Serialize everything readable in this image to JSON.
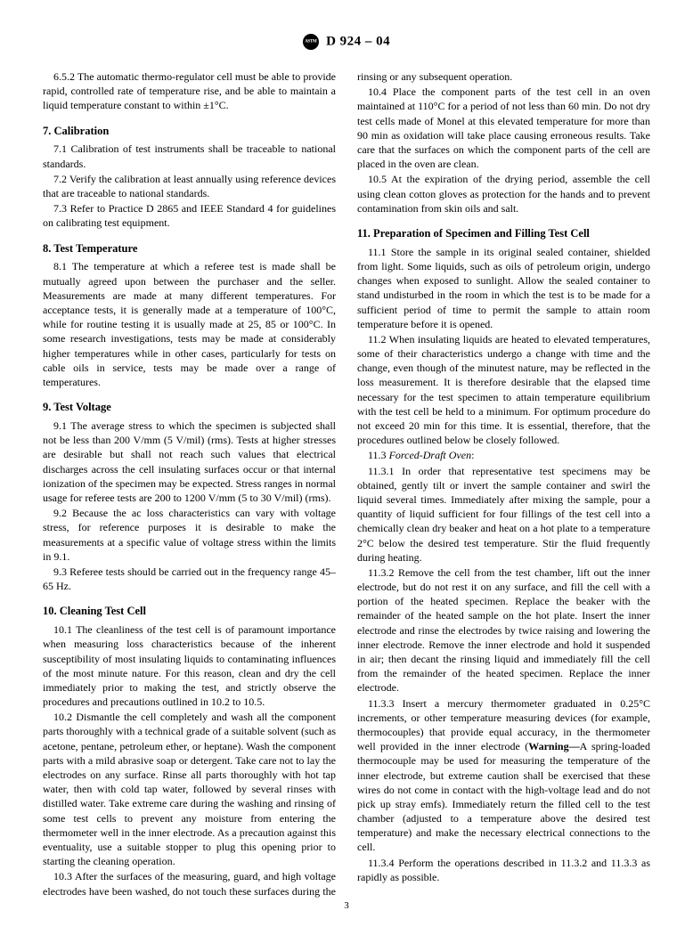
{
  "header": {
    "designation": "D 924 – 04"
  },
  "paragraphs": {
    "p652": "6.5.2 The automatic thermo-regulator cell must be able to provide rapid, controlled rate of temperature rise, and be able to maintain a liquid temperature constant to within ±1°C.",
    "s7": "7. Calibration",
    "p71": "7.1 Calibration of test instruments shall be traceable to national standards.",
    "p72": "7.2 Verify the calibration at least annually using reference devices that are traceable to national standards.",
    "p73": "7.3 Refer to Practice D 2865 and IEEE Standard 4 for guidelines on calibrating test equipment.",
    "s8": "8. Test Temperature",
    "p81": "8.1 The temperature at which a referee test is made shall be mutually agreed upon between the purchaser and the seller. Measurements are made at many different temperatures. For acceptance tests, it is generally made at a temperature of 100°C, while for routine testing it is usually made at 25, 85 or 100°C. In some research investigations, tests may be made at considerably higher temperatures while in other cases, particularly for tests on cable oils in service, tests may be made over a range of temperatures.",
    "s9": "9. Test Voltage",
    "p91": "9.1 The average stress to which the specimen is subjected shall not be less than 200 V/mm (5 V/mil) (rms). Tests at higher stresses are desirable but shall not reach such values that electrical discharges across the cell insulating surfaces occur or that internal ionization of the specimen may be expected. Stress ranges in normal usage for referee tests are 200 to 1200 V/mm (5 to 30 V/mil) (rms).",
    "p92": "9.2 Because the ac loss characteristics can vary with voltage stress, for reference purposes it is desirable to make the measurements at a specific value of voltage stress within the limits in 9.1.",
    "p93": "9.3 Referee tests should be carried out in the frequency range 45–65 Hz.",
    "s10": "10. Cleaning Test Cell",
    "p101": "10.1 The cleanliness of the test cell is of paramount importance when measuring loss characteristics because of the inherent susceptibility of most insulating liquids to contaminating influences of the most minute nature. For this reason, clean and dry the cell immediately prior to making the test, and strictly observe the procedures and precautions outlined in 10.2 to 10.5.",
    "p102": "10.2 Dismantle the cell completely and wash all the component parts thoroughly with a technical grade of a suitable solvent (such as acetone, pentane, petroleum ether, or heptane). Wash the component parts with a mild abrasive soap or detergent. Take care not to lay the electrodes on any surface. Rinse all parts thoroughly with hot tap water, then with cold tap water, followed by several rinses with distilled water. Take extreme care during the washing and rinsing of some test cells to prevent any moisture from entering the thermometer well in the inner electrode. As a precaution against this eventuality, use a suitable stopper to plug this opening prior to starting the cleaning operation.",
    "p103": "10.3 After the surfaces of the measuring, guard, and high voltage electrodes have been washed, do not touch these surfaces during the rinsing or any subsequent operation.",
    "p104": "10.4 Place the component parts of the test cell in an oven maintained at 110°C for a period of not less than 60 min. Do not dry test cells made of Monel at this elevated temperature for more than 90 min as oxidation will take place causing erroneous results. Take care that the surfaces on which the component parts of the cell are placed in the oven are clean.",
    "p105": "10.5 At the expiration of the drying period, assemble the cell using clean cotton gloves as protection for the hands and to prevent contamination from skin oils and salt.",
    "s11": "11. Preparation of Specimen and Filling Test Cell",
    "p111": "11.1 Store the sample in its original sealed container, shielded from light. Some liquids, such as oils of petroleum origin, undergo changes when exposed to sunlight. Allow the sealed container to stand undisturbed in the room in which the test is to be made for a sufficient period of time to permit the sample to attain room temperature before it is opened.",
    "p112": "11.2 When insulating liquids are heated to elevated temperatures, some of their characteristics undergo a change with time and the change, even though of the minutest nature, may be reflected in the loss measurement. It is therefore desirable that the elapsed time necessary for the test specimen to attain temperature equilibrium with the test cell be held to a minimum. For optimum procedure do not exceed 20 min for this time. It is essential, therefore, that the procedures outlined below be closely followed.",
    "p113label": "11.3 ",
    "p113italic": "Forced-Draft Oven",
    "p1131": "11.3.1 In order that representative test specimens may be obtained, gently tilt or invert the sample container and swirl the liquid several times. Immediately after mixing the sample, pour a quantity of liquid sufficient for four fillings of the test cell into a chemically clean dry beaker and heat on a hot plate to a temperature 2°C below the desired test temperature. Stir the fluid frequently during heating.",
    "p1132": "11.3.2 Remove the cell from the test chamber, lift out the inner electrode, but do not rest it on any surface, and fill the cell with a portion of the heated specimen. Replace the beaker with the remainder of the heated sample on the hot plate. Insert the inner electrode and rinse the electrodes by twice raising and lowering the inner electrode. Remove the inner electrode and hold it suspended in air; then decant the rinsing liquid and immediately fill the cell from the remainder of the heated specimen. Replace the inner electrode.",
    "p1133a": "11.3.3 Insert a mercury thermometer graduated in 0.25°C increments, or other temperature measuring devices (for example, thermocouples) that provide equal accuracy, in the thermometer well provided in the inner electrode (",
    "p1133warn": "Warning—",
    "p1133b": "A spring-loaded thermocouple may be used for measuring the temperature of the inner electrode, but extreme caution shall be exercised that these wires do not come in contact with the high-voltage lead and do not pick up stray emfs). Immediately return the filled cell to the test chamber (adjusted to a temperature above the desired test temperature) and make the necessary electrical connections to the cell.",
    "p1134": "11.3.4 Perform the operations described in 11.3.2 and 11.3.3 as rapidly as possible."
  },
  "pageNumber": "3"
}
